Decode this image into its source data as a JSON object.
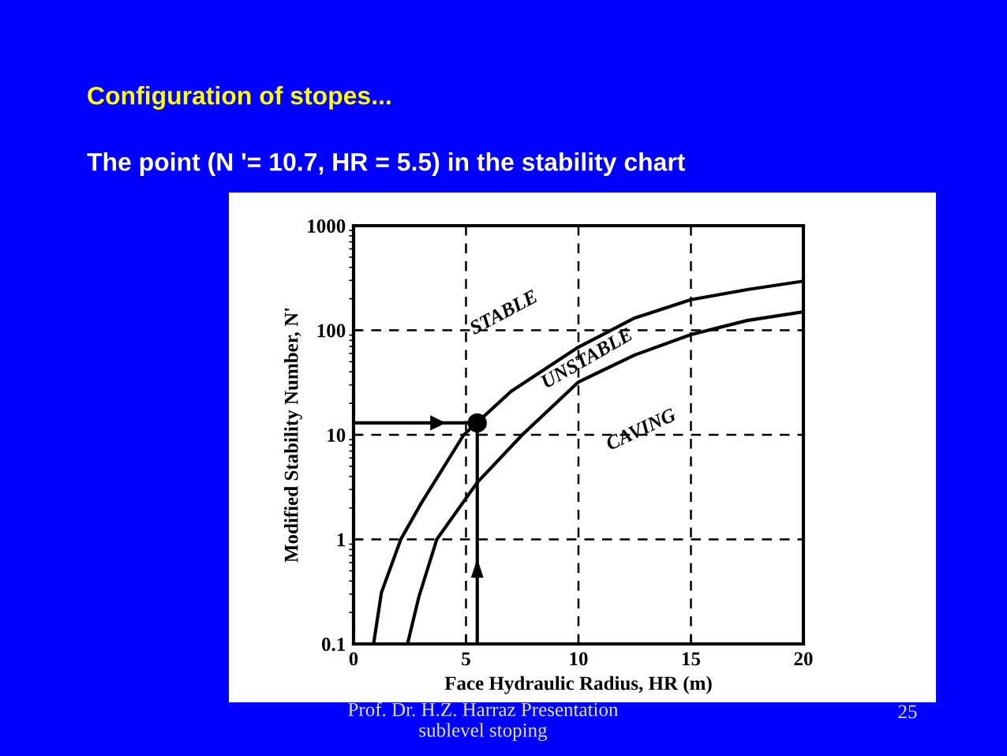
{
  "chart_data": {
    "type": "line",
    "title": "Configuration of stopes...",
    "subtitle": "The point (N '= 10.7, HR = 5.5) in the stability chart",
    "xlabel": "Face Hydraulic Radius, HR (m)",
    "ylabel": "Modified Stability Number, N'",
    "series": [
      {
        "color": "#000000",
        "x": [
          0.89,
          1.24,
          2.1,
          3,
          4.9,
          7,
          10,
          12.5,
          15,
          17.5,
          20
        ],
        "values": [
          0.1,
          0.31,
          1,
          2.2,
          10,
          26,
          69,
          131,
          196,
          245,
          295
        ]
      },
      {
        "color": "#000000",
        "x": [
          2.4,
          2.9,
          3.7,
          5.5,
          7.5,
          10,
          12.5,
          15,
          17.5,
          20
        ],
        "values": [
          0.1,
          0.28,
          1,
          3.5,
          10,
          32,
          58,
          91,
          124,
          150
        ]
      },
      {
        "color": "#000000",
        "x": [
          0,
          5.5
        ],
        "values": [
          13,
          13
        ]
      },
      {
        "color": "#000000",
        "x": [
          5.5,
          5.5
        ],
        "values": [
          0.1,
          13
        ]
      },
      {
        "type": "scatter",
        "color": "#000000",
        "x": [
          5.5
        ],
        "values": [
          13
        ],
        "marker": "circle"
      }
    ],
    "log": "y",
    "xlim": [
      0,
      20
    ],
    "xticks": [
      0,
      5,
      10,
      15,
      20
    ],
    "ylim": [
      0.1,
      1000
    ],
    "yticks": [
      0.1,
      1,
      10,
      100,
      1000
    ],
    "grid": true,
    "line_style": "solid",
    "marker": "none",
    "annotations": [
      "STABLE",
      "UNSTABLE",
      "CAVING",
      "Prof. Dr. H.Z. Harraz Presentation\nsublevel stoping",
      "25"
    ]
  }
}
